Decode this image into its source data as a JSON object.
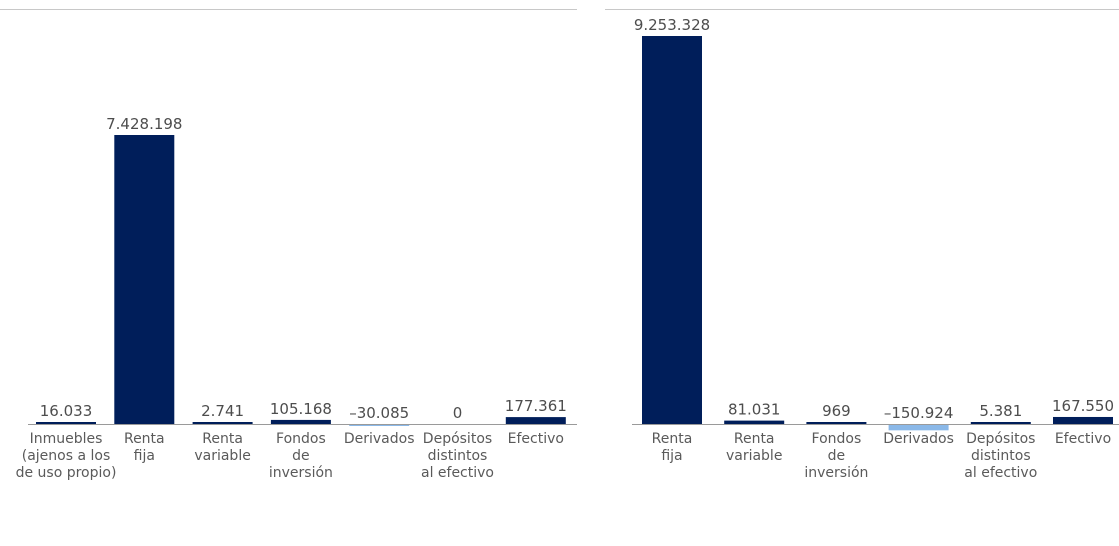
{
  "colors": {
    "positive": "#001e5a",
    "negative": "#8ab8e8",
    "axis": "#9a9a9a",
    "text": "#4d4d4d"
  },
  "chart_data": [
    {
      "type": "bar",
      "title": "",
      "xlabel": "",
      "ylabel": "",
      "ylim": [
        -30085,
        7428198
      ],
      "categories": [
        [
          "Inmuebles",
          "(ajenos a los",
          "de uso propio)"
        ],
        [
          "Renta",
          "fija"
        ],
        [
          "Renta",
          "variable"
        ],
        [
          "Fondos",
          "de",
          "inversión"
        ],
        [
          "Derivados"
        ],
        [
          "Depósitos",
          "distintos",
          "al efectivo"
        ],
        [
          "Efectivo"
        ]
      ],
      "values": [
        16033,
        7428198,
        2741,
        105168,
        -30085,
        0,
        177361
      ],
      "value_labels": [
        "16.033",
        "7.428.198",
        "2.741",
        "105.168",
        "–30.085",
        "0",
        "177.361"
      ]
    },
    {
      "type": "bar",
      "title": "",
      "xlabel": "",
      "ylabel": "",
      "ylim": [
        -150924,
        9253328
      ],
      "categories": [
        [
          "Renta",
          "fija"
        ],
        [
          "Renta",
          "variable"
        ],
        [
          "Fondos",
          "de",
          "inversión"
        ],
        [
          "Derivados"
        ],
        [
          "Depósitos",
          "distintos",
          "al efectivo"
        ],
        [
          "Efectivo"
        ]
      ],
      "values": [
        9253328,
        81031,
        969,
        -150924,
        5381,
        167550
      ],
      "value_labels": [
        "9.253.328",
        "81.031",
        "969",
        "–150.924",
        "5.381",
        "167.550"
      ]
    }
  ]
}
